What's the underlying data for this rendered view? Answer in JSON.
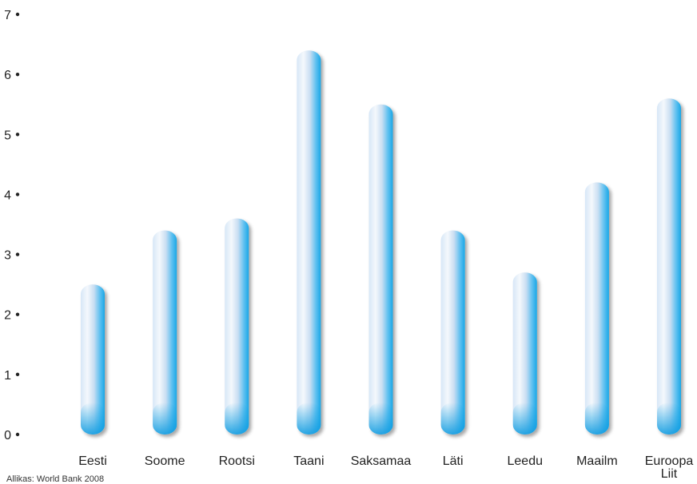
{
  "chart_data": {
    "type": "bar",
    "categories": [
      "Eesti",
      "Soome",
      "Rootsi",
      "Taani",
      "Saksamaa",
      "Läti",
      "Leedu",
      "Maailm",
      [
        "Euroopa",
        "Liit"
      ]
    ],
    "values": [
      2.5,
      3.4,
      3.6,
      6.4,
      5.5,
      3.4,
      2.7,
      4.2,
      5.6
    ],
    "ylim": [
      0,
      7
    ],
    "yticks": [
      0,
      1,
      2,
      3,
      4,
      5,
      6,
      7
    ],
    "grid": false,
    "source": "Allikas: World Bank 2008"
  },
  "colors": {
    "bar_base": "#1aa7e6",
    "bar_highlight": "#f2f6fb",
    "bar_mid": "#bcd4ee",
    "bar_shadow": "#8fa4bb",
    "text": "#222222"
  }
}
